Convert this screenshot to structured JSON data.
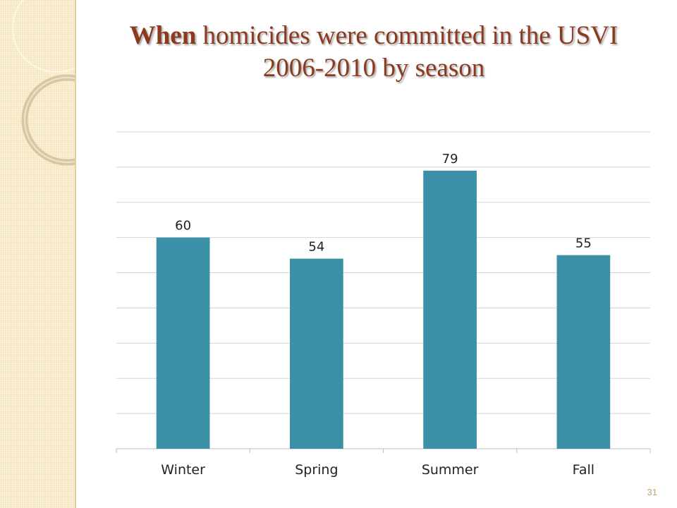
{
  "slide": {
    "title_bold": "When",
    "title_rest": " homicides were committed in the USVI",
    "title_line2": "2006-2010 by season",
    "number": "31"
  },
  "colors": {
    "bar": "#3b8fa7",
    "title": "#8c3a1e",
    "gridline": "#d4d4d4",
    "band": "#f6e6bf"
  },
  "chart_data": {
    "type": "bar",
    "categories": [
      "Winter",
      "Spring",
      "Summer",
      "Fall"
    ],
    "values": [
      60,
      54,
      79,
      55
    ],
    "ylim": [
      0,
      90
    ],
    "gridlines": true,
    "grid_step": 10,
    "data_labels": true,
    "title": "",
    "xlabel": "",
    "ylabel": ""
  }
}
